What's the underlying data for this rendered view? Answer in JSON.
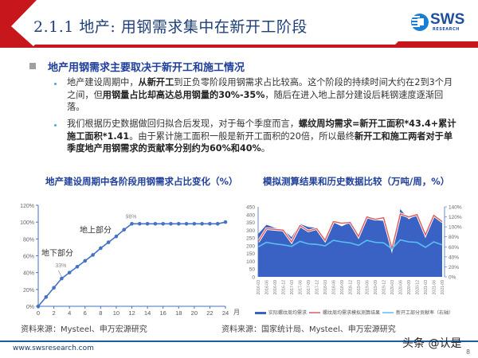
{
  "header": {
    "title": "2.1.1 地产: 用钢需求集中在新开工阶段",
    "logo_text": "SWS",
    "logo_sub": "RESEARCH"
  },
  "section": {
    "heading": "地产用钢需求主要取决于新开工和施工情况",
    "bullets": [
      {
        "parts": [
          {
            "t": "地产建设周期中，",
            "b": false
          },
          {
            "t": "从新开工",
            "b": true
          },
          {
            "t": "到正负零阶段用钢需求占比较高。这个阶段的持续时间大约在2到3个月之间，但",
            "b": false
          },
          {
            "t": "用钢量占比却高达总用钢量的30%-35%",
            "b": true
          },
          {
            "t": "，随后在进入地上部分建设后耗钢速度逐渐回落。",
            "b": false
          }
        ]
      },
      {
        "parts": [
          {
            "t": "我们根据历史数据做回归拟合后发现，对于每个季度而言，",
            "b": false
          },
          {
            "t": "螺纹周均需求=新开工面积*43.4+累计施工面积*1.41",
            "b": true
          },
          {
            "t": "。由于累计施工面积一般是新开工面积的20倍，所以最终",
            "b": false
          },
          {
            "t": "新开工和施工两者对于单季度地产用钢需求的贡献率分别约为60%和40%",
            "b": true
          },
          {
            "t": "。",
            "b": false
          }
        ]
      }
    ]
  },
  "chart_data": [
    {
      "type": "line",
      "title": "地产建设周期中各阶段用钢需求占比变化（%）",
      "xlabel": "月",
      "ylabel": "",
      "x": [
        0,
        1,
        2,
        3,
        4,
        5,
        6,
        7,
        8,
        9,
        10,
        11,
        12,
        13,
        14,
        15,
        16,
        17,
        18,
        19,
        20,
        21,
        22,
        23,
        24
      ],
      "values": [
        0,
        11,
        22,
        33,
        40,
        47,
        54,
        61,
        69,
        76,
        83,
        91,
        98,
        98,
        98,
        98,
        98,
        98,
        98,
        98,
        98,
        98,
        98,
        98,
        100
      ],
      "xlim": [
        0,
        24
      ],
      "ylim": [
        0,
        120
      ],
      "xticks": [
        0,
        2,
        4,
        6,
        8,
        10,
        12,
        14,
        16,
        18,
        20,
        22,
        24
      ],
      "yticks": [
        "0%",
        "20%",
        "40%",
        "60%",
        "80%",
        "100%",
        "120%"
      ],
      "annotations": [
        {
          "text": "33%",
          "x": 3,
          "y": 33
        },
        {
          "text": "98%",
          "x": 12,
          "y": 98
        },
        {
          "text": "地下部分",
          "x": 1,
          "y": 62
        },
        {
          "text": "地上部分",
          "x": 7,
          "y": 91
        }
      ],
      "color": "#4472c4",
      "grid": false
    },
    {
      "type": "area",
      "title": "模拟测算结果和历史数据比较（万吨/周，%）",
      "categories": [
        "2016-03",
        "2016-06",
        "2016-09",
        "2016-12",
        "2017-03",
        "2017-06",
        "2017-09",
        "2017-12",
        "2018-03",
        "2018-06",
        "2018-09",
        "2018-12",
        "2019-03",
        "2019-06",
        "2019-09",
        "2019-12",
        "2020-03",
        "2020-06",
        "2020-09",
        "2020-12",
        "2021-03",
        "2021-06",
        "2021-09"
      ],
      "series": [
        {
          "name": "实际螺纹周均需求",
          "type": "area",
          "axis": "left",
          "color": "#3a62c4",
          "values": [
            275,
            335,
            315,
            305,
            255,
            340,
            320,
            315,
            245,
            350,
            325,
            350,
            260,
            390,
            365,
            360,
            150,
            435,
            370,
            400,
            260,
            400,
            345
          ]
        },
        {
          "name": "螺纹周均需求模拟测算结果",
          "type": "line",
          "axis": "left",
          "color": "#e05a5a",
          "values": [
            225,
            310,
            305,
            300,
            225,
            330,
            295,
            310,
            235,
            355,
            345,
            350,
            260,
            385,
            370,
            380,
            180,
            405,
            385,
            400,
            270,
            395,
            355
          ]
        },
        {
          "name": "新开工部分贡献率（右轴）",
          "type": "line",
          "axis": "right",
          "color": "#5bc0f0",
          "values": [
            60,
            69,
            66,
            64,
            61,
            71,
            66,
            65,
            62,
            73,
            70,
            68,
            63,
            73,
            69,
            68,
            56,
            74,
            70,
            69,
            59,
            70,
            64
          ]
        }
      ],
      "ylim_left": [
        0,
        450
      ],
      "yticks_left": [
        0,
        50,
        100,
        150,
        200,
        250,
        300,
        350,
        400,
        450
      ],
      "ylim_right": [
        0,
        140
      ],
      "yticks_right": [
        "0%",
        "20%",
        "40%",
        "60%",
        "80%",
        "100%",
        "120%",
        "140%"
      ],
      "legend_position": "bottom"
    }
  ],
  "sources": {
    "left": "资料来源：Mysteel、申万宏源研究",
    "right": "资料来源：国家统计局、Mysteel、申万宏源研究"
  },
  "footer": {
    "url": "www.swsresearch.com",
    "watermark": "头条 @认是",
    "page": "8"
  }
}
